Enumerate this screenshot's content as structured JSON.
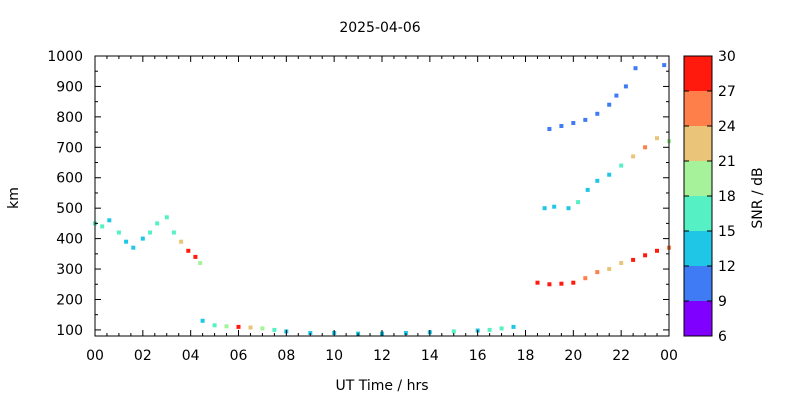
{
  "chart_data": {
    "type": "heatmap",
    "title": "2025-04-06",
    "xlabel": "UT Time / hrs",
    "ylabel": "km",
    "xlim": [
      0,
      24
    ],
    "ylim": [
      80,
      1000
    ],
    "x_ticks": [
      "00",
      "02",
      "04",
      "06",
      "08",
      "10",
      "12",
      "14",
      "16",
      "18",
      "20",
      "22",
      "00"
    ],
    "y_ticks": [
      100,
      200,
      300,
      400,
      500,
      600,
      700,
      800,
      900,
      1000
    ],
    "colorbar": {
      "label": "SNR / dB",
      "ticks": [
        6,
        9,
        12,
        15,
        18,
        21,
        24,
        27,
        30
      ],
      "range": [
        6,
        30
      ],
      "bands": [
        "#7f00ff",
        "#3f7bf5",
        "#1fc6e6",
        "#55f0c3",
        "#a6f29a",
        "#eac479",
        "#ff7f4a",
        "#ff1a0d"
      ]
    },
    "series": [
      {
        "x": [
          0.0,
          0.3,
          0.6,
          1.0,
          1.3,
          1.6,
          2.0,
          2.3,
          2.6,
          3.0,
          3.3,
          3.6,
          3.9,
          4.2,
          4.4
        ],
        "y": [
          450,
          440,
          460,
          420,
          390,
          370,
          400,
          420,
          450,
          470,
          420,
          390,
          360,
          340,
          320
        ],
        "snr": [
          15,
          16,
          14,
          15,
          13,
          12,
          14,
          15,
          16,
          17,
          16,
          22,
          27,
          28,
          18
        ]
      },
      {
        "x": [
          4.5,
          5.0,
          5.5,
          6.0,
          6.5,
          7.0,
          7.5,
          8.0,
          9.0,
          10.0,
          11.0,
          12.0,
          13.0,
          14.0,
          15.0,
          16.0,
          16.5,
          17.0,
          17.5
        ],
        "y": [
          130,
          115,
          112,
          110,
          108,
          105,
          100,
          95,
          90,
          90,
          88,
          88,
          90,
          92,
          95,
          98,
          100,
          105,
          110
        ],
        "snr": [
          14,
          16,
          18,
          27,
          22,
          18,
          15,
          14,
          12,
          13,
          12,
          12,
          13,
          12,
          15,
          14,
          15,
          16,
          13
        ]
      },
      {
        "x": [
          18.5,
          19.0,
          19.5,
          20.0,
          20.5,
          21.0,
          21.5,
          22.0,
          22.5,
          23.0,
          23.5,
          24.0
        ],
        "y": [
          255,
          250,
          252,
          255,
          270,
          290,
          300,
          320,
          330,
          345,
          360,
          370
        ],
        "snr": [
          28,
          29,
          29,
          28,
          26,
          24,
          22,
          23,
          27,
          28,
          29,
          26
        ]
      },
      {
        "x": [
          18.8,
          19.2,
          19.8,
          20.2,
          20.6,
          21.0,
          21.5,
          22.0,
          22.5,
          23.0,
          23.5,
          24.0
        ],
        "y": [
          500,
          505,
          500,
          520,
          560,
          590,
          610,
          640,
          670,
          700,
          730,
          720
        ],
        "snr": [
          13,
          14,
          12,
          15,
          14,
          13,
          14,
          15,
          21,
          24,
          22,
          18
        ]
      },
      {
        "x": [
          19.0,
          19.5,
          20.0,
          20.5,
          21.0,
          21.5,
          21.8,
          22.2,
          22.6,
          23.8
        ],
        "y": [
          760,
          770,
          780,
          790,
          810,
          840,
          870,
          900,
          960,
          970
        ],
        "snr": [
          10,
          10,
          11,
          10,
          10,
          10,
          11,
          10,
          10,
          10
        ]
      }
    ]
  }
}
